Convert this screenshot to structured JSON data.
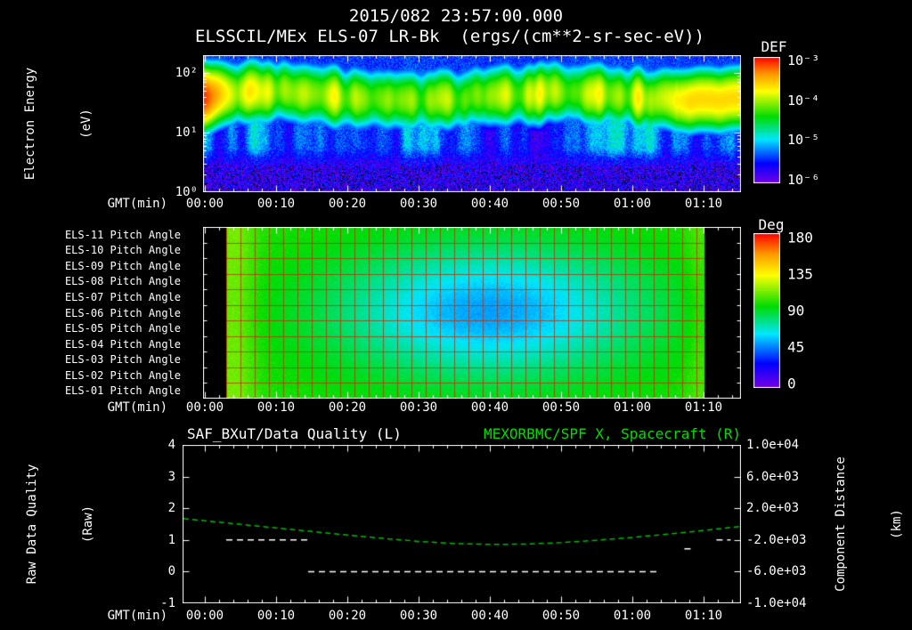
{
  "colors": {
    "background": "#000000",
    "foreground": "#ffffff",
    "title_green": "#00dd00",
    "curve_green": "#00bb00",
    "grid_red": "#b42d00"
  },
  "header": {
    "title": "2015/082 23:57:00.000",
    "subtitle": "ELSSCIL/MEx ELS-07 LR-Bk  (ergs/(cm**2-sr-sec-eV))"
  },
  "gmt_label": "GMT(min)",
  "x_axis": {
    "tick_labels": [
      "00:00",
      "00:10",
      "00:20",
      "00:30",
      "00:40",
      "00:50",
      "01:00",
      "01:10"
    ],
    "tick_minutes": [
      0,
      10,
      20,
      30,
      40,
      50,
      60,
      70
    ],
    "range_minutes": [
      0,
      75.25
    ],
    "minor_step_minutes": 2
  },
  "chart_data": [
    {
      "id": "electron-energy-spectrogram",
      "type": "heatmap",
      "ylabel_lines": [
        "Electron Energy",
        "(eV)"
      ],
      "xlabel": "GMT(min)",
      "y_tick_labels": [
        "10²",
        "10¹",
        "10⁰"
      ],
      "y_tick_log10": [
        2,
        1,
        0
      ],
      "ylim_log10": [
        0,
        2.3
      ],
      "colorbar": {
        "title": "DEF",
        "tick_labels": [
          "10⁻³",
          "10⁻⁴",
          "10⁻⁵",
          "10⁻⁶"
        ],
        "tick_log10": [
          -3,
          -4,
          -5,
          -6
        ],
        "range_log10": [
          -6.1,
          -2.9
        ]
      },
      "features": {
        "background_log10": -5.45,
        "band_center_log10_eV": 1.62,
        "band_sigma_log10": 0.22,
        "band_peak_log10_left": -3.05,
        "band_peak_log10_mid": -4.1,
        "band_peak_log10_right": -3.6,
        "low_energy_cutoff_log10_eV": 0.55,
        "low_energy_log10": -5.85
      }
    },
    {
      "id": "pitch-angle-panels",
      "type": "heatmap",
      "row_labels": [
        "ELS-11 Pitch Angle",
        "ELS-10 Pitch Angle",
        "ELS-09 Pitch Angle",
        "ELS-08 Pitch Angle",
        "ELS-07 Pitch Angle",
        "ELS-06 Pitch Angle",
        "ELS-05 Pitch Angle",
        "ELS-04 Pitch Angle",
        "ELS-03 Pitch Angle",
        "ELS-02 Pitch Angle",
        "ELS-01 Pitch Angle"
      ],
      "xlabel": "GMT(min)",
      "colorbar": {
        "title": "Deg",
        "tick_labels": [
          "180",
          "135",
          "90",
          "45",
          "0"
        ],
        "tick_values": [
          180,
          135,
          90,
          45,
          0
        ],
        "range": [
          -6,
          186
        ]
      },
      "data_minutes": [
        3,
        70
      ],
      "background_deg": 100,
      "blob": {
        "center_minute": 40,
        "center_row": 5.4,
        "sigma_minutes": 15,
        "sigma_rows": 2.9,
        "min_deg": 50
      },
      "grid": {
        "vertical_step_minutes": 2
      }
    },
    {
      "id": "quality-and-distance",
      "type": "line",
      "title_left": "SAF_BXuT/Data Quality (L)",
      "title_right": "MEXORBMC/SPF X, Spacecraft (R)",
      "xlabel": "GMT(min)",
      "ylabel_left_lines": [
        "Raw Data Quality",
        "(Raw)"
      ],
      "ylabel_right_lines": [
        "Component Distance",
        "(km)"
      ],
      "left_tick_labels": [
        "4",
        "3",
        "2",
        "1",
        "0",
        "-1"
      ],
      "left_tick_values": [
        4,
        3,
        2,
        1,
        0,
        -1
      ],
      "ylim_left": [
        -1,
        4
      ],
      "right_tick_labels": [
        "1.0e+04",
        "6.0e+03",
        "2.0e+03",
        "-2.0e+03",
        "-6.0e+03",
        "-1.0e+04"
      ],
      "right_tick_values": [
        10000,
        6000,
        2000,
        -2000,
        -6000,
        -10000
      ],
      "ylim_right": [
        -10000,
        10000
      ],
      "series": [
        {
          "name": "spacecraft-x-distance",
          "axis": "right",
          "color": "#00bb00",
          "style": "dashed",
          "points_min_km": [
            [
              -3,
              700
            ],
            [
              0,
              420
            ],
            [
              5,
              -30
            ],
            [
              10,
              -480
            ],
            [
              15,
              -930
            ],
            [
              20,
              -1380
            ],
            [
              25,
              -1800
            ],
            [
              30,
              -2180
            ],
            [
              35,
              -2450
            ],
            [
              40,
              -2570
            ],
            [
              45,
              -2520
            ],
            [
              50,
              -2330
            ],
            [
              55,
              -2040
            ],
            [
              60,
              -1680
            ],
            [
              65,
              -1260
            ],
            [
              70,
              -800
            ],
            [
              75,
              -310
            ]
          ]
        },
        {
          "name": "raw-data-quality",
          "axis": "left",
          "color": "#ffffff",
          "style": "dashed",
          "segments_min_value": [
            [
              3,
              14.5,
              1
            ],
            [
              14.5,
              63.5,
              0
            ],
            [
              67.3,
              68.3,
              0.72
            ],
            [
              71.8,
              73.8,
              1
            ]
          ]
        }
      ]
    }
  ]
}
